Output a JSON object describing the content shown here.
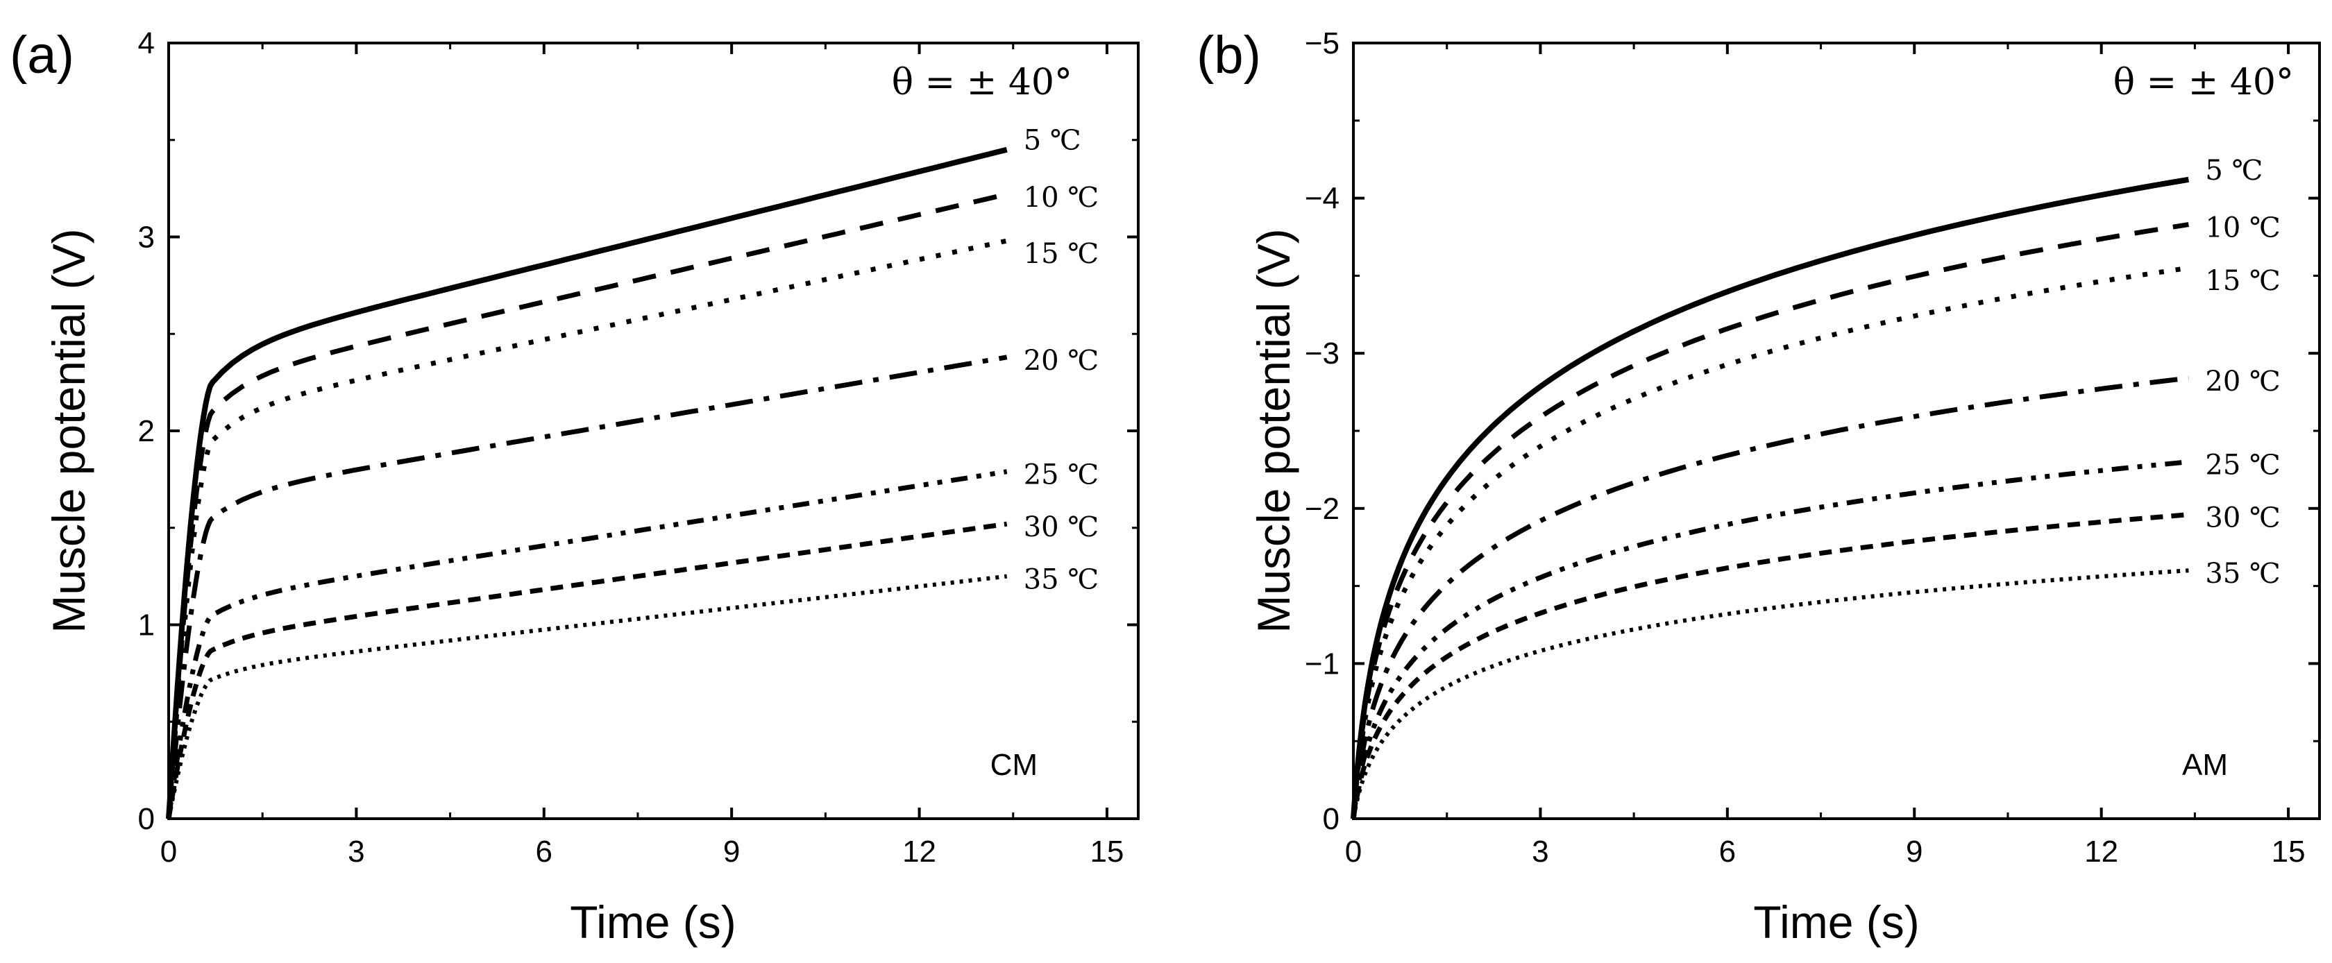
{
  "chart_data": [
    {
      "type": "line",
      "panel_label": "(a)",
      "xlabel": "Time (s)",
      "ylabel": "Muscle potential (V)",
      "xlim": [
        0,
        15.5
      ],
      "ylim": [
        0,
        4
      ],
      "y_reversed": false,
      "xticks": [
        "0",
        "3",
        "6",
        "9",
        "12",
        "15"
      ],
      "yticks": [
        "0",
        "1",
        "2",
        "3",
        "4"
      ],
      "annotation_top": "θ = ± 40°",
      "annotation_corner": "CM",
      "knee_x": 0.7,
      "x_end": 13.4,
      "series": [
        {
          "name": "5 ℃",
          "style": "solid",
          "knee": 2.25,
          "end": 3.45
        },
        {
          "name": "10 ℃",
          "style": "dash",
          "knee": 2.1,
          "end": 3.22
        },
        {
          "name": "15 ℃",
          "style": "dot",
          "knee": 1.95,
          "end": 2.98
        },
        {
          "name": "20 ℃",
          "style": "dashdot",
          "knee": 1.55,
          "end": 2.38
        },
        {
          "name": "25 ℃",
          "style": "dashdotdot",
          "knee": 1.05,
          "end": 1.79
        },
        {
          "name": "30 ℃",
          "style": "shortdash",
          "knee": 0.87,
          "end": 1.52
        },
        {
          "name": "35 ℃",
          "style": "finedot",
          "knee": 0.72,
          "end": 1.25
        }
      ]
    },
    {
      "type": "line",
      "panel_label": "(b)",
      "xlabel": "Time (s)",
      "ylabel": "Muscle potential (V)",
      "xlim": [
        0,
        15.5
      ],
      "ylim": [
        0,
        -5
      ],
      "y_reversed": true,
      "xticks": [
        "0",
        "3",
        "6",
        "9",
        "12",
        "15"
      ],
      "yticks": [
        "0",
        "−1",
        "−2",
        "−3",
        "−4",
        "−5"
      ],
      "annotation_top": "θ = ± 40°",
      "annotation_corner": "AM",
      "x_end": 13.4,
      "series": [
        {
          "name": "5 ℃",
          "style": "solid",
          "end": -4.12
        },
        {
          "name": "10 ℃",
          "style": "dash",
          "end": -3.83
        },
        {
          "name": "15 ℃",
          "style": "dot",
          "end": -3.55
        },
        {
          "name": "20 ℃",
          "style": "dashdot",
          "end": -2.84
        },
        {
          "name": "25 ℃",
          "style": "dashdotdot",
          "end": -2.3
        },
        {
          "name": "30 ℃",
          "style": "shortdash",
          "end": -1.96
        },
        {
          "name": "35 ℃",
          "style": "finedot",
          "end": -1.6
        }
      ]
    }
  ]
}
